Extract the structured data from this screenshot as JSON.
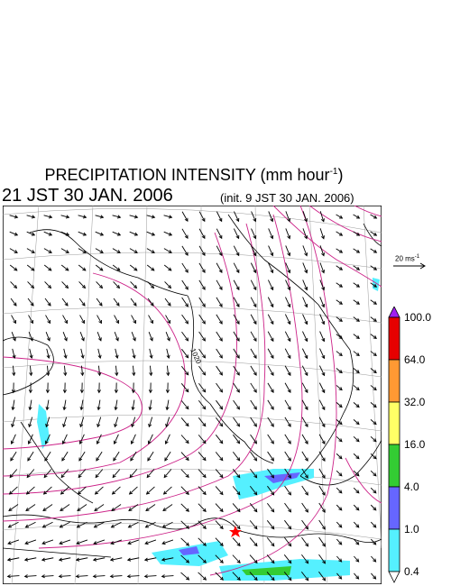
{
  "header": {
    "title_main": "PRECIPITATION INTENSITY (mm hour",
    "title_sup": "-1",
    "title_close": ")",
    "valid_time": "21 JST 30 JAN. 2006",
    "init_time": "(init. 9 JST 30 JAN. 2006)"
  },
  "wind_scale": {
    "label_main": "20 ms",
    "label_sup": "-1"
  },
  "contour_label": "1020",
  "colorbar": {
    "levels": [
      {
        "label": "100.0",
        "color": "#a020f0"
      },
      {
        "label": "64.0",
        "color": "#e60000"
      },
      {
        "label": "32.0",
        "color": "#ff9933"
      },
      {
        "label": "16.0",
        "color": "#ffff66"
      },
      {
        "label": "4.0",
        "color": "#33cc33"
      },
      {
        "label": "1.0",
        "color": "#6666ff"
      },
      {
        "label": "0.4",
        "color": "#55f0ff"
      }
    ]
  },
  "colors": {
    "contour": "#cc2288",
    "coast": "#000000",
    "grid": "#999999",
    "marker": "#ff0000"
  }
}
